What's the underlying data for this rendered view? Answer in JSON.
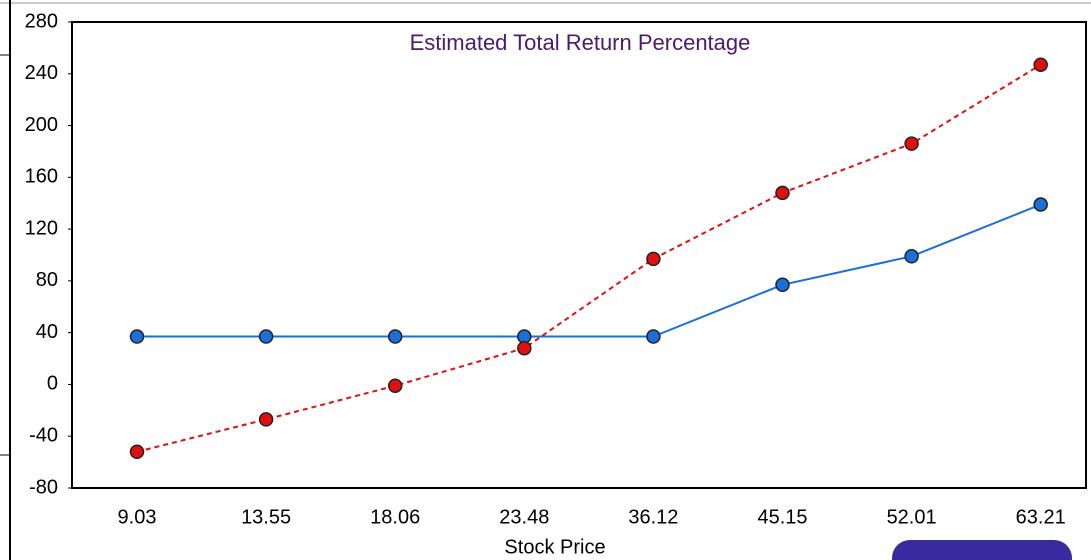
{
  "chart_data": {
    "type": "line",
    "title": "Estimated Total Return Percentage",
    "x_label": "Stock Price",
    "categories": [
      "9.03",
      "13.55",
      "18.06",
      "23.48",
      "36.12",
      "45.15",
      "52.01",
      "63.21"
    ],
    "series": [
      {
        "color": "#1a6fd8",
        "dashed": false,
        "values": [
          37,
          37,
          37,
          37,
          37,
          77,
          99,
          139
        ]
      },
      {
        "color": "#e01010",
        "dashed": true,
        "values": [
          -52,
          -27,
          -1,
          28,
          97,
          148,
          186,
          247
        ]
      }
    ],
    "ylim": [
      -80,
      280
    ],
    "yticks": [
      -80,
      -40,
      0,
      40,
      80,
      120,
      160,
      200,
      240,
      280
    ],
    "grid": false
  }
}
